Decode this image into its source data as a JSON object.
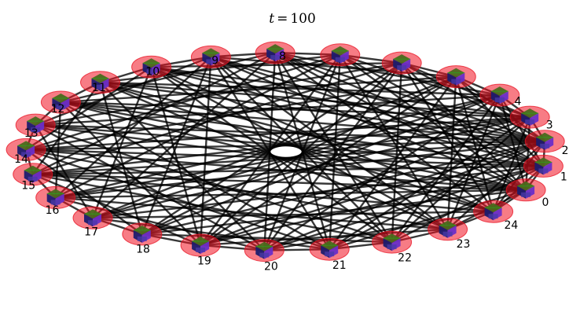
{
  "figure": {
    "title_var": "t",
    "title_op": "=",
    "title_value": "100"
  },
  "colors": {
    "background": "#ffffff",
    "edge": "#000000",
    "node_halo": "#f01020",
    "cube_top": "#4a6a1e",
    "cube_left": "#1c1c6e",
    "cube_right": "#6a2ec8",
    "cube_front": "#4a3aa8",
    "overlay_green": "#18c018"
  },
  "graph": {
    "nodes": [
      {
        "id": 0,
        "label": "0"
      },
      {
        "id": 1,
        "label": "1"
      },
      {
        "id": 2,
        "label": "2"
      },
      {
        "id": 3,
        "label": "3"
      },
      {
        "id": 4,
        "label": "4"
      },
      {
        "id": 5,
        "label": ""
      },
      {
        "id": 6,
        "label": ""
      },
      {
        "id": 7,
        "label": ""
      },
      {
        "id": 8,
        "label": "8"
      },
      {
        "id": 9,
        "label": "9"
      },
      {
        "id": 10,
        "label": "10"
      },
      {
        "id": 11,
        "label": "11"
      },
      {
        "id": 12,
        "label": "12"
      },
      {
        "id": 13,
        "label": "13"
      },
      {
        "id": 14,
        "label": "14"
      },
      {
        "id": 15,
        "label": "15"
      },
      {
        "id": 16,
        "label": "16"
      },
      {
        "id": 17,
        "label": "17"
      },
      {
        "id": 18,
        "label": "18"
      },
      {
        "id": 19,
        "label": "19"
      },
      {
        "id": 20,
        "label": "20"
      },
      {
        "id": 21,
        "label": "21"
      },
      {
        "id": 22,
        "label": "22"
      },
      {
        "id": 23,
        "label": "23"
      },
      {
        "id": 24,
        "label": "24"
      }
    ],
    "edges": [
      [
        0,
        4
      ],
      [
        0,
        6
      ],
      [
        0,
        9
      ],
      [
        0,
        12
      ],
      [
        0,
        14
      ],
      [
        0,
        16
      ],
      [
        0,
        18
      ],
      [
        0,
        21
      ],
      [
        0,
        23
      ],
      [
        0,
        8
      ],
      [
        0,
        11
      ],
      [
        0,
        3
      ],
      [
        1,
        5
      ],
      [
        1,
        8
      ],
      [
        1,
        10
      ],
      [
        1,
        13
      ],
      [
        1,
        15
      ],
      [
        1,
        17
      ],
      [
        1,
        20
      ],
      [
        1,
        22
      ],
      [
        1,
        24
      ],
      [
        1,
        7
      ],
      [
        2,
        6
      ],
      [
        2,
        9
      ],
      [
        2,
        11
      ],
      [
        2,
        14
      ],
      [
        2,
        16
      ],
      [
        2,
        19
      ],
      [
        2,
        21
      ],
      [
        2,
        24
      ],
      [
        2,
        12
      ],
      [
        3,
        7
      ],
      [
        3,
        10
      ],
      [
        3,
        12
      ],
      [
        3,
        15
      ],
      [
        3,
        17
      ],
      [
        3,
        19
      ],
      [
        3,
        22
      ],
      [
        3,
        0
      ],
      [
        4,
        8
      ],
      [
        4,
        11
      ],
      [
        4,
        13
      ],
      [
        4,
        16
      ],
      [
        4,
        18
      ],
      [
        4,
        20
      ],
      [
        4,
        23
      ],
      [
        4,
        1
      ],
      [
        5,
        9
      ],
      [
        5,
        12
      ],
      [
        5,
        14
      ],
      [
        5,
        17
      ],
      [
        5,
        19
      ],
      [
        5,
        21
      ],
      [
        5,
        24
      ],
      [
        5,
        2
      ],
      [
        6,
        10
      ],
      [
        6,
        13
      ],
      [
        6,
        15
      ],
      [
        6,
        18
      ],
      [
        6,
        20
      ],
      [
        6,
        22
      ],
      [
        6,
        3
      ],
      [
        7,
        11
      ],
      [
        7,
        14
      ],
      [
        7,
        16
      ],
      [
        7,
        19
      ],
      [
        7,
        21
      ],
      [
        7,
        23
      ],
      [
        7,
        0
      ],
      [
        8,
        12
      ],
      [
        8,
        15
      ],
      [
        8,
        17
      ],
      [
        8,
        20
      ],
      [
        8,
        22
      ],
      [
        8,
        24
      ],
      [
        8,
        2
      ],
      [
        9,
        13
      ],
      [
        9,
        16
      ],
      [
        9,
        18
      ],
      [
        9,
        21
      ],
      [
        9,
        23
      ],
      [
        9,
        1
      ],
      [
        9,
        19
      ],
      [
        10,
        14
      ],
      [
        10,
        17
      ],
      [
        10,
        19
      ],
      [
        10,
        22
      ],
      [
        10,
        24
      ],
      [
        10,
        2
      ],
      [
        11,
        15
      ],
      [
        11,
        18
      ],
      [
        11,
        20
      ],
      [
        11,
        23
      ],
      [
        11,
        0
      ],
      [
        11,
        3
      ],
      [
        12,
        16
      ],
      [
        12,
        19
      ],
      [
        12,
        21
      ],
      [
        12,
        24
      ],
      [
        12,
        1
      ],
      [
        13,
        17
      ],
      [
        13,
        20
      ],
      [
        13,
        22
      ],
      [
        13,
        0
      ],
      [
        13,
        2
      ],
      [
        14,
        18
      ],
      [
        14,
        21
      ],
      [
        14,
        23
      ],
      [
        14,
        1
      ],
      [
        14,
        3
      ],
      [
        15,
        19
      ],
      [
        15,
        22
      ],
      [
        15,
        24
      ],
      [
        15,
        2
      ],
      [
        15,
        0
      ],
      [
        16,
        20
      ],
      [
        16,
        23
      ],
      [
        16,
        0
      ],
      [
        16,
        3
      ],
      [
        17,
        21
      ],
      [
        17,
        24
      ],
      [
        17,
        1
      ],
      [
        17,
        4
      ],
      [
        18,
        22
      ],
      [
        18,
        0
      ],
      [
        18,
        2
      ],
      [
        18,
        5
      ],
      [
        19,
        23
      ],
      [
        19,
        1
      ],
      [
        19,
        3
      ],
      [
        19,
        6
      ],
      [
        20,
        24
      ],
      [
        20,
        2
      ],
      [
        20,
        4
      ],
      [
        20,
        7
      ],
      [
        21,
        0
      ],
      [
        21,
        3
      ],
      [
        21,
        5
      ],
      [
        21,
        8
      ],
      [
        22,
        1
      ],
      [
        22,
        4
      ],
      [
        22,
        6
      ],
      [
        22,
        9
      ],
      [
        23,
        2
      ],
      [
        23,
        5
      ],
      [
        23,
        7
      ],
      [
        23,
        10
      ],
      [
        24,
        3
      ],
      [
        24,
        6
      ],
      [
        24,
        8
      ],
      [
        24,
        11
      ],
      [
        0,
        1
      ],
      [
        1,
        2
      ],
      [
        2,
        3
      ],
      [
        3,
        4
      ],
      [
        4,
        5
      ],
      [
        5,
        6
      ],
      [
        6,
        7
      ],
      [
        7,
        8
      ],
      [
        8,
        9
      ],
      [
        9,
        10
      ],
      [
        10,
        11
      ],
      [
        11,
        12
      ],
      [
        12,
        13
      ],
      [
        13,
        14
      ],
      [
        14,
        15
      ],
      [
        15,
        16
      ],
      [
        16,
        17
      ],
      [
        17,
        18
      ],
      [
        18,
        19
      ],
      [
        19,
        20
      ],
      [
        20,
        21
      ],
      [
        21,
        22
      ],
      [
        22,
        23
      ],
      [
        23,
        24
      ],
      [
        24,
        0
      ]
    ]
  }
}
